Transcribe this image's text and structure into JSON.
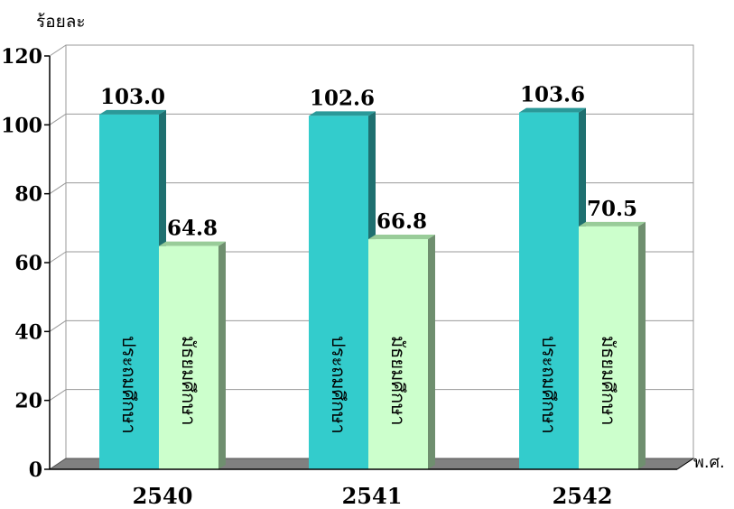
{
  "chart_data": {
    "type": "bar",
    "ylabel": "ร้อยละ",
    "xlabel": "พ.ศ.",
    "categories": [
      "2540",
      "2541",
      "2542"
    ],
    "series": [
      {
        "values": [
          103.0,
          102.6,
          103.6
        ],
        "labels": [
          "103.0",
          "102.6",
          "103.6"
        ],
        "bar_text": [
          "ประถมศึกษา",
          "ประถมศึกษา",
          "ประถมศึกษา"
        ],
        "color": "#33cccc",
        "side_color": "#1f7070",
        "top_color": "#2a9999"
      },
      {
        "values": [
          64.8,
          66.8,
          70.5
        ],
        "labels": [
          "64.8",
          "66.8",
          "70.5"
        ],
        "bar_text": [
          "มัธยมศึกษา",
          "มัธยมศึกษา",
          "มัธยมศึกษา"
        ],
        "color": "#ccffcc",
        "side_color": "#6f8f6f",
        "top_color": "#99cc99"
      }
    ],
    "ylim": [
      0,
      120
    ],
    "yticks": [
      "0",
      "20",
      "40",
      "60",
      "80",
      "100",
      "120"
    ],
    "grid": true,
    "legend": "none"
  }
}
